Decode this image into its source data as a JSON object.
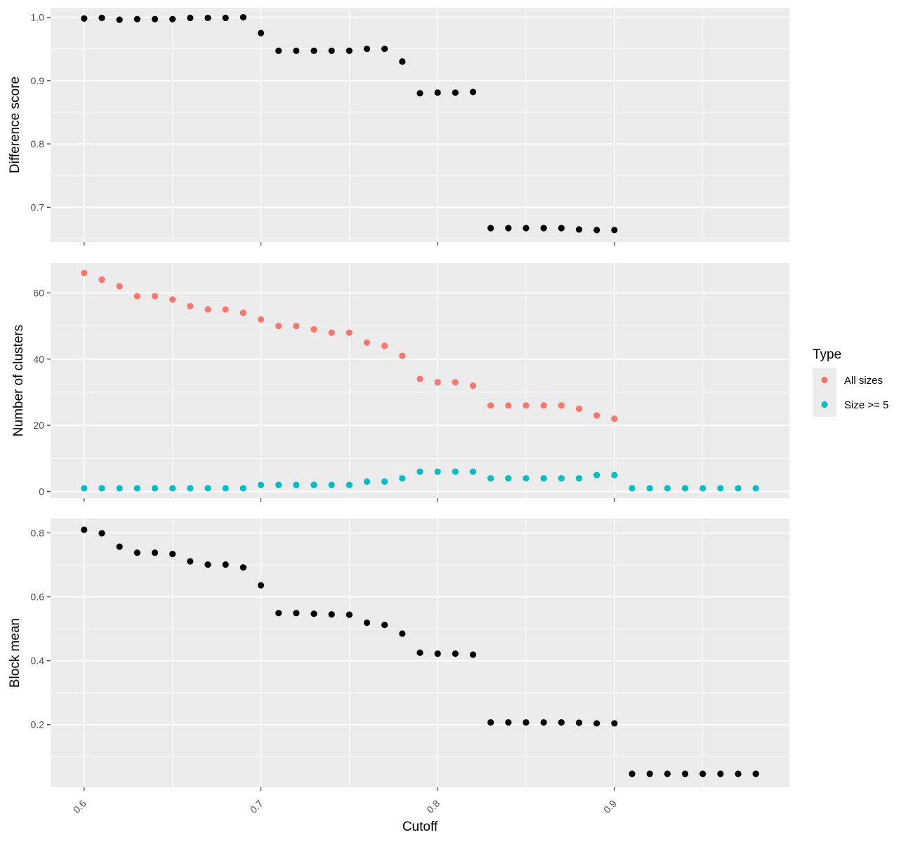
{
  "chart_data": [
    {
      "type": "scatter",
      "ylabel": "Difference score",
      "xlabel": "",
      "ylim": [
        0.645,
        1.015
      ],
      "yticks": [
        0.7,
        0.8,
        0.9,
        1.0
      ],
      "ytick_labels": [
        "0.7",
        "0.8",
        "0.9",
        "1.0"
      ],
      "xlim": [
        0.581,
        0.999
      ],
      "grid": true,
      "series": [
        {
          "color": "#000000",
          "x": [
            0.6,
            0.61,
            0.62,
            0.63,
            0.64,
            0.65,
            0.66,
            0.67,
            0.68,
            0.69,
            0.7,
            0.71,
            0.72,
            0.73,
            0.74,
            0.75,
            0.76,
            0.77,
            0.78,
            0.79,
            0.8,
            0.81,
            0.82,
            0.83,
            0.84,
            0.85,
            0.86,
            0.87,
            0.88,
            0.89,
            0.9
          ],
          "y": [
            0.998,
            0.999,
            0.996,
            0.997,
            0.997,
            0.997,
            0.999,
            0.999,
            0.999,
            1.0,
            0.975,
            0.947,
            0.947,
            0.947,
            0.947,
            0.947,
            0.95,
            0.95,
            0.93,
            0.88,
            0.881,
            0.881,
            0.882,
            0.667,
            0.667,
            0.667,
            0.667,
            0.667,
            0.665,
            0.664,
            0.664
          ]
        }
      ]
    },
    {
      "type": "scatter",
      "ylabel": "Number of clusters",
      "xlabel": "",
      "ylim": [
        -2,
        69
      ],
      "yticks": [
        0,
        20,
        40,
        60
      ],
      "ytick_labels": [
        "0",
        "20",
        "40",
        "60"
      ],
      "xlim": [
        0.581,
        0.999
      ],
      "grid": true,
      "legend": {
        "title": "Type",
        "position": "right",
        "entries": [
          {
            "label": "All sizes",
            "color": "#F8766D"
          },
          {
            "label": "Size >= 5",
            "color": "#00BFC4"
          }
        ]
      },
      "series": [
        {
          "name": "All sizes",
          "color": "#F8766D",
          "x": [
            0.6,
            0.61,
            0.62,
            0.63,
            0.64,
            0.65,
            0.66,
            0.67,
            0.68,
            0.69,
            0.7,
            0.71,
            0.72,
            0.73,
            0.74,
            0.75,
            0.76,
            0.77,
            0.78,
            0.79,
            0.8,
            0.81,
            0.82,
            0.83,
            0.84,
            0.85,
            0.86,
            0.87,
            0.88,
            0.89,
            0.9
          ],
          "y": [
            66,
            64,
            62,
            59,
            59,
            58,
            56,
            55,
            55,
            54,
            52,
            50,
            50,
            49,
            48,
            48,
            45,
            44,
            41,
            34,
            33,
            33,
            32,
            26,
            26,
            26,
            26,
            26,
            25,
            23,
            22
          ]
        },
        {
          "name": "Size >= 5",
          "color": "#00BFC4",
          "x": [
            0.6,
            0.61,
            0.62,
            0.63,
            0.64,
            0.65,
            0.66,
            0.67,
            0.68,
            0.69,
            0.7,
            0.71,
            0.72,
            0.73,
            0.74,
            0.75,
            0.76,
            0.77,
            0.78,
            0.79,
            0.8,
            0.81,
            0.82,
            0.83,
            0.84,
            0.85,
            0.86,
            0.87,
            0.88,
            0.89,
            0.9,
            0.91,
            0.92,
            0.93,
            0.94,
            0.95,
            0.96,
            0.97,
            0.98
          ],
          "y": [
            1,
            1,
            1,
            1,
            1,
            1,
            1,
            1,
            1,
            1,
            2,
            2,
            2,
            2,
            2,
            2,
            3,
            3,
            4,
            6,
            6,
            6,
            6,
            4,
            4,
            4,
            4,
            4,
            4,
            5,
            5,
            1,
            1,
            1,
            1,
            1,
            1,
            1,
            1
          ]
        }
      ]
    },
    {
      "type": "scatter",
      "ylabel": "Block mean",
      "xlabel": "Cutoff",
      "ylim": [
        0.004,
        0.845
      ],
      "yticks": [
        0.2,
        0.4,
        0.6,
        0.8
      ],
      "ytick_labels": [
        "0.2",
        "0.4",
        "0.6",
        "0.8"
      ],
      "xlim": [
        0.581,
        0.999
      ],
      "xticks": [
        0.6,
        0.7,
        0.8,
        0.9
      ],
      "xtick_labels": [
        "0.6",
        "0.7",
        "0.8",
        "0.9"
      ],
      "grid": true,
      "series": [
        {
          "color": "#000000",
          "x": [
            0.6,
            0.61,
            0.62,
            0.63,
            0.64,
            0.65,
            0.66,
            0.67,
            0.68,
            0.69,
            0.7,
            0.71,
            0.72,
            0.73,
            0.74,
            0.75,
            0.76,
            0.77,
            0.78,
            0.79,
            0.8,
            0.81,
            0.82,
            0.83,
            0.84,
            0.85,
            0.86,
            0.87,
            0.88,
            0.89,
            0.9,
            0.91,
            0.92,
            0.93,
            0.94,
            0.95,
            0.96,
            0.97,
            0.98
          ],
          "y": [
            0.81,
            0.799,
            0.757,
            0.738,
            0.738,
            0.734,
            0.711,
            0.701,
            0.701,
            0.692,
            0.636,
            0.549,
            0.549,
            0.547,
            0.545,
            0.544,
            0.519,
            0.512,
            0.485,
            0.425,
            0.422,
            0.422,
            0.419,
            0.207,
            0.207,
            0.207,
            0.207,
            0.207,
            0.206,
            0.204,
            0.204,
            0.046,
            0.046,
            0.046,
            0.046,
            0.046,
            0.046,
            0.046,
            0.046
          ]
        }
      ]
    }
  ]
}
